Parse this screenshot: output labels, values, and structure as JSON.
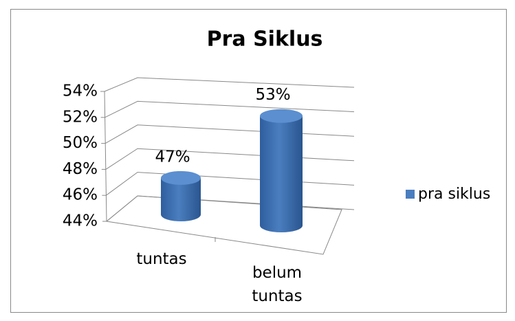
{
  "chart_data": {
    "type": "bar3d_cylinder",
    "title": "Pra Siklus",
    "categories": [
      "tuntas",
      "belum tuntas"
    ],
    "series": [
      {
        "name": "pra siklus",
        "color": "#4a7ebf",
        "values": [
          47,
          53
        ],
        "value_labels": [
          "47%",
          "53%"
        ]
      }
    ],
    "ylim": [
      44,
      54
    ],
    "yticks": [
      {
        "value": 44,
        "label": "44%"
      },
      {
        "value": 46,
        "label": "46%"
      },
      {
        "value": 48,
        "label": "48%"
      },
      {
        "value": 50,
        "label": "50%"
      },
      {
        "value": 52,
        "label": "52%"
      },
      {
        "value": 54,
        "label": "54%"
      }
    ],
    "grid": true,
    "legend": "right"
  }
}
